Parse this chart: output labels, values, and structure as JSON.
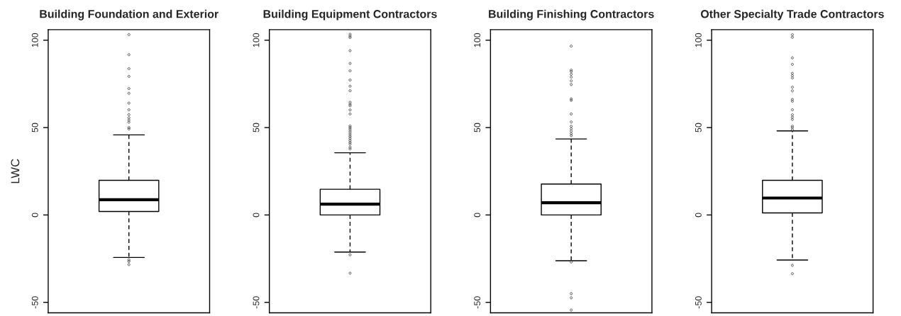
{
  "chart_data": [
    {
      "type": "box",
      "title": "Building Foundation and Exterior",
      "ylabel": "LWC",
      "categories": [
        null
      ],
      "ylim": [
        -56,
        106
      ],
      "yticks": [
        -50,
        0,
        50,
        100
      ],
      "grid": false,
      "boxes": [
        {
          "low": -24.3,
          "q1": 2.0,
          "median": 8.7,
          "q3": 19.8,
          "high": 45.8,
          "outliers": [
            103.2,
            91.7,
            83.7,
            79.3,
            72.3,
            69.6,
            64.0,
            60.2,
            57.4,
            55.6,
            54.3,
            53.1,
            50.0,
            49.2,
            -25.7,
            -26.6,
            -28.4
          ]
        }
      ]
    },
    {
      "type": "box",
      "title": "Building Equipment Contractors",
      "categories": [
        null
      ],
      "ylim": [
        -56,
        106
      ],
      "yticks": [
        -50,
        0,
        50,
        100
      ],
      "grid": false,
      "boxes": [
        {
          "low": -21.2,
          "q1": 0,
          "median": 6.2,
          "q3": 14.7,
          "high": 35.6,
          "outliers": [
            103.4,
            102.4,
            101.5,
            94.0,
            86.7,
            82.5,
            77.2,
            73.7,
            71.1,
            64.5,
            63.4,
            62.5,
            60.1,
            57.8,
            50.9,
            50.0,
            49.1,
            48.0,
            46.9,
            45.8,
            44.8,
            43.7,
            42.6,
            41.5,
            40.5,
            38.8,
            37.8,
            -22.8,
            -33.3
          ]
        }
      ]
    },
    {
      "type": "box",
      "title": "Building Finishing Contractors",
      "categories": [
        null
      ],
      "ylim": [
        -56,
        106
      ],
      "yticks": [
        -50,
        0,
        50,
        100
      ],
      "grid": false,
      "boxes": [
        {
          "low": -26.2,
          "q1": 0,
          "median": 7.0,
          "q3": 17.7,
          "high": 43.5,
          "outliers": [
            96.6,
            82.9,
            82.0,
            80.5,
            78.9,
            76.7,
            74.6,
            66.4,
            65.6,
            57.8,
            53.2,
            50.7,
            49.3,
            48.0,
            46.6,
            45.4,
            -26.9,
            -45.0,
            -47.4,
            -54.4
          ]
        }
      ]
    },
    {
      "type": "box",
      "title": "Other Specialty Trade Contractors",
      "categories": [
        null
      ],
      "ylim": [
        -56,
        106
      ],
      "yticks": [
        -50,
        0,
        50,
        100
      ],
      "grid": false,
      "boxes": [
        {
          "low": -25.8,
          "q1": 1.2,
          "median": 9.7,
          "q3": 19.8,
          "high": 48.1,
          "outliers": [
            103.1,
            101.7,
            89.9,
            86.2,
            81.0,
            79.7,
            78.4,
            73.1,
            71.0,
            66.1,
            65.1,
            60.2,
            57.3,
            56.0,
            54.7,
            50.8,
            49.9,
            48.8,
            -28.8,
            -33.6
          ]
        }
      ]
    }
  ]
}
